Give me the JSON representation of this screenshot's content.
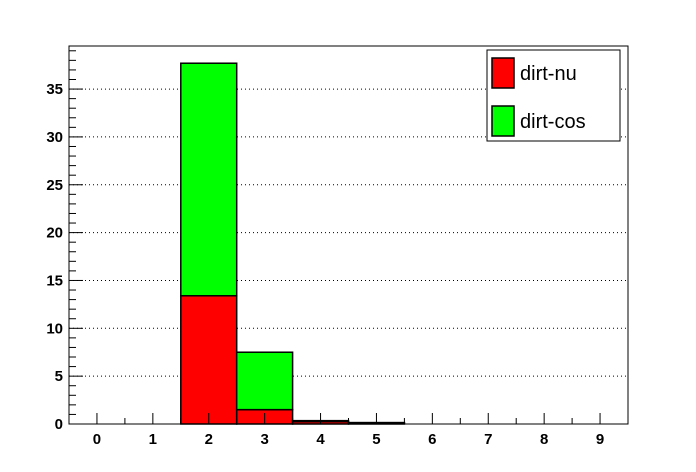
{
  "chart_data": {
    "type": "bar",
    "stacked": true,
    "title": "",
    "xlabel": "",
    "ylabel": "",
    "x": [
      0,
      1,
      2,
      3,
      4,
      5,
      6,
      7,
      8,
      9
    ],
    "xlim": [
      -0.5,
      9.5
    ],
    "ylim": [
      0,
      39.5
    ],
    "x_ticks": [
      "0",
      "1",
      "2",
      "3",
      "4",
      "5",
      "6",
      "7",
      "8",
      "9"
    ],
    "y_ticks": [
      "0",
      "5",
      "10",
      "15",
      "20",
      "25",
      "30",
      "35"
    ],
    "y_tick_values": [
      0,
      5,
      10,
      15,
      20,
      25,
      30,
      35
    ],
    "grid": {
      "horizontal": true,
      "style": "dotted"
    },
    "legend_position": "top-right",
    "series": [
      {
        "name": "dirt-nu",
        "color": "#ff0000",
        "values": [
          0,
          0,
          13.4,
          1.5,
          0.25,
          0.1,
          0,
          0,
          0,
          0
        ]
      },
      {
        "name": "dirt-cos",
        "color": "#00ff00",
        "values": [
          0,
          0,
          24.3,
          6.0,
          0.1,
          0.05,
          0,
          0,
          0,
          0
        ]
      }
    ]
  }
}
